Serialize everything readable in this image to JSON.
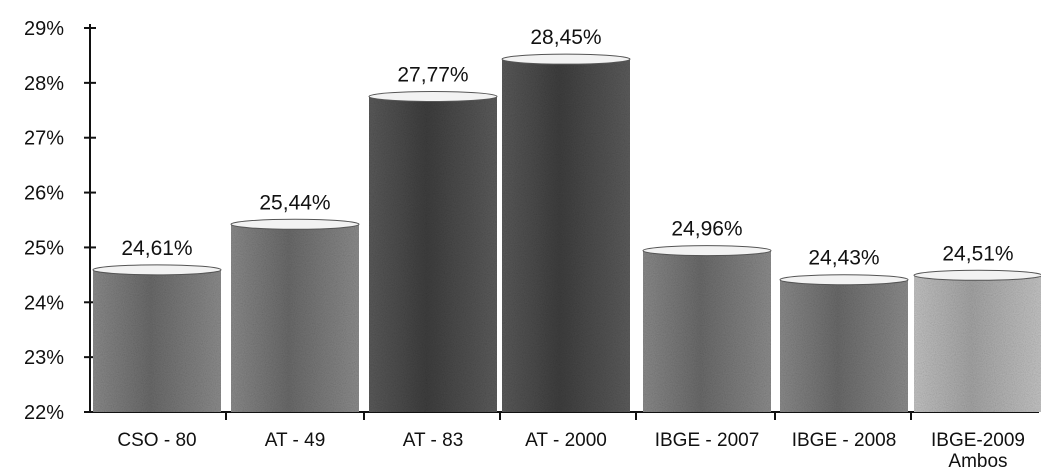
{
  "chart_data": {
    "type": "bar",
    "categories": [
      "CSO - 80",
      "AT - 49",
      "AT - 83",
      "AT - 2000",
      "IBGE - 2007",
      "IBGE - 2008",
      "IBGE-2009 Ambos"
    ],
    "category_lines": [
      [
        "CSO - 80"
      ],
      [
        "AT - 49"
      ],
      [
        "AT - 83"
      ],
      [
        "AT - 2000"
      ],
      [
        "IBGE - 2007"
      ],
      [
        "IBGE - 2008"
      ],
      [
        "IBGE-2009",
        "Ambos"
      ]
    ],
    "values": [
      24.61,
      25.44,
      27.77,
      28.45,
      24.96,
      24.43,
      24.51
    ],
    "value_labels": [
      "24,61%",
      "25,44%",
      "27,77%",
      "28,45%",
      "24,96%",
      "24,43%",
      "24,51%"
    ],
    "yticks": [
      22,
      23,
      24,
      25,
      26,
      27,
      28,
      29
    ],
    "ytick_labels": [
      "22%",
      "23%",
      "24%",
      "25%",
      "26%",
      "27%",
      "28%",
      "29%"
    ],
    "ylim": [
      22,
      29
    ],
    "title": "",
    "xlabel": "",
    "ylabel": "",
    "grid": false,
    "legend": "none",
    "colors": {
      "bar_dark": "#4a4a4a",
      "bar_mid": "#6e6e6e",
      "bar_light": "#a8a8a8",
      "axis": "#111111"
    }
  }
}
